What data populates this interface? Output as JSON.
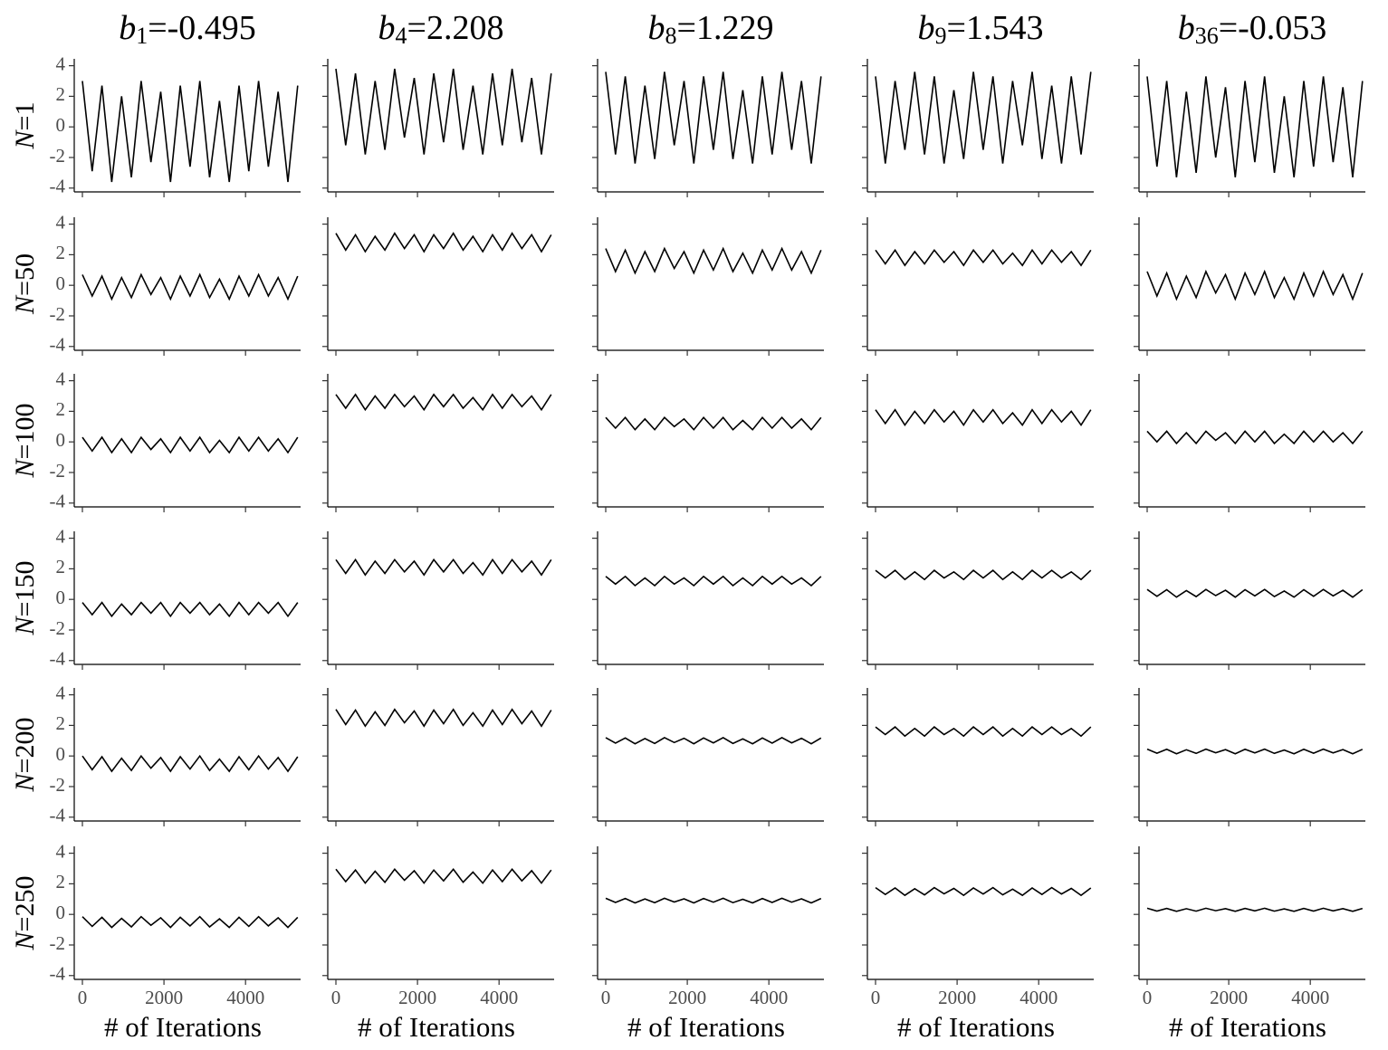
{
  "chart_data": {
    "type": "line",
    "columns": [
      {
        "var": "b",
        "sub": "1",
        "rest": "=-0.495"
      },
      {
        "var": "b",
        "sub": "4",
        "rest": "=2.208"
      },
      {
        "var": "b",
        "sub": "8",
        "rest": "=1.229"
      },
      {
        "var": "b",
        "sub": "9",
        "rest": "=1.543"
      },
      {
        "var": "b",
        "sub": "36",
        "rest": "=-0.053"
      }
    ],
    "x": [
      0,
      240,
      480,
      720,
      960,
      1200,
      1440,
      1680,
      1920,
      2160,
      2400,
      2640,
      2880,
      3120,
      3360,
      3600,
      3840,
      4080,
      4320,
      4560,
      4800,
      5040,
      5280
    ],
    "rows": [
      {
        "var": "N",
        "rest": "=1",
        "panels": [
          [
            3.0,
            -2.9,
            2.7,
            -3.6,
            2.0,
            -3.3,
            3.0,
            -2.3,
            2.3,
            -3.6,
            2.7,
            -2.6,
            3.0,
            -3.3,
            1.7,
            -3.6,
            2.7,
            -2.9,
            3.0,
            -2.6,
            2.3,
            -3.6,
            2.7
          ],
          [
            3.8,
            -1.2,
            3.5,
            -1.8,
            3.0,
            -1.5,
            3.8,
            -0.7,
            3.2,
            -1.8,
            3.5,
            -1.0,
            3.8,
            -1.5,
            2.7,
            -1.8,
            3.5,
            -1.2,
            3.8,
            -1.0,
            3.2,
            -1.8,
            3.5
          ],
          [
            3.6,
            -1.8,
            3.3,
            -2.4,
            2.7,
            -2.1,
            3.6,
            -1.2,
            3.0,
            -2.4,
            3.3,
            -1.5,
            3.6,
            -2.1,
            2.4,
            -2.4,
            3.3,
            -1.8,
            3.6,
            -1.5,
            3.0,
            -2.4,
            3.3
          ],
          [
            3.3,
            -2.4,
            3.0,
            -1.5,
            3.6,
            -1.8,
            3.3,
            -2.4,
            2.4,
            -2.1,
            3.6,
            -1.5,
            3.3,
            -2.4,
            3.0,
            -1.2,
            3.6,
            -2.1,
            2.7,
            -2.4,
            3.3,
            -1.8,
            3.6
          ],
          [
            3.3,
            -2.6,
            3.0,
            -3.3,
            2.3,
            -3.0,
            3.3,
            -2.0,
            2.6,
            -3.3,
            3.0,
            -2.3,
            3.3,
            -3.0,
            2.0,
            -3.3,
            3.0,
            -2.6,
            3.3,
            -2.3,
            2.6,
            -3.3,
            3.0
          ]
        ]
      },
      {
        "var": "N",
        "rest": "=50",
        "panels": [
          [
            0.7,
            -0.7,
            0.6,
            -0.9,
            0.5,
            -0.8,
            0.7,
            -0.6,
            0.5,
            -0.9,
            0.6,
            -0.7,
            0.7,
            -0.8,
            0.4,
            -0.9,
            0.6,
            -0.7,
            0.7,
            -0.7,
            0.5,
            -0.9,
            0.6
          ],
          [
            3.4,
            2.3,
            3.3,
            2.2,
            3.2,
            2.3,
            3.4,
            2.4,
            3.3,
            2.2,
            3.3,
            2.4,
            3.4,
            2.3,
            3.2,
            2.2,
            3.3,
            2.3,
            3.4,
            2.4,
            3.3,
            2.2,
            3.3
          ],
          [
            2.4,
            0.9,
            2.3,
            0.8,
            2.2,
            0.9,
            2.4,
            1.1,
            2.2,
            0.8,
            2.3,
            1.0,
            2.4,
            0.9,
            2.1,
            0.8,
            2.3,
            1.0,
            2.4,
            1.0,
            2.2,
            0.8,
            2.3
          ],
          [
            2.3,
            1.4,
            2.3,
            1.3,
            2.2,
            1.4,
            2.3,
            1.5,
            2.2,
            1.3,
            2.3,
            1.5,
            2.3,
            1.4,
            2.1,
            1.3,
            2.3,
            1.4,
            2.3,
            1.5,
            2.2,
            1.3,
            2.3
          ],
          [
            0.9,
            -0.7,
            0.8,
            -0.9,
            0.6,
            -0.8,
            0.9,
            -0.5,
            0.7,
            -0.9,
            0.8,
            -0.6,
            0.9,
            -0.8,
            0.5,
            -0.9,
            0.8,
            -0.7,
            0.9,
            -0.6,
            0.7,
            -0.9,
            0.8
          ]
        ]
      },
      {
        "var": "N",
        "rest": "=100",
        "panels": [
          [
            0.3,
            -0.6,
            0.3,
            -0.7,
            0.2,
            -0.7,
            0.3,
            -0.5,
            0.2,
            -0.7,
            0.3,
            -0.6,
            0.3,
            -0.7,
            0.1,
            -0.7,
            0.3,
            -0.6,
            0.3,
            -0.6,
            0.2,
            -0.7,
            0.3
          ],
          [
            3.1,
            2.2,
            3.1,
            2.1,
            3.0,
            2.2,
            3.1,
            2.3,
            3.0,
            2.1,
            3.1,
            2.3,
            3.1,
            2.2,
            2.9,
            2.1,
            3.1,
            2.2,
            3.1,
            2.3,
            3.0,
            2.1,
            3.1
          ],
          [
            1.6,
            0.9,
            1.6,
            0.8,
            1.5,
            0.8,
            1.6,
            1.0,
            1.5,
            0.8,
            1.6,
            0.9,
            1.6,
            0.8,
            1.4,
            0.8,
            1.6,
            0.9,
            1.6,
            0.9,
            1.5,
            0.8,
            1.6
          ],
          [
            2.1,
            1.2,
            2.1,
            1.1,
            2.0,
            1.2,
            2.1,
            1.3,
            2.0,
            1.1,
            2.1,
            1.3,
            2.1,
            1.2,
            1.9,
            1.1,
            2.1,
            1.2,
            2.1,
            1.3,
            2.0,
            1.1,
            2.1
          ],
          [
            0.7,
            0.0,
            0.7,
            -0.1,
            0.6,
            -0.1,
            0.7,
            0.1,
            0.6,
            -0.1,
            0.7,
            0.0,
            0.7,
            -0.1,
            0.5,
            -0.1,
            0.7,
            0.0,
            0.7,
            0.0,
            0.6,
            -0.1,
            0.7
          ]
        ]
      },
      {
        "var": "N",
        "rest": "=150",
        "panels": [
          [
            -0.2,
            -1.0,
            -0.2,
            -1.1,
            -0.3,
            -1.0,
            -0.2,
            -0.9,
            -0.2,
            -1.1,
            -0.2,
            -0.9,
            -0.2,
            -1.0,
            -0.3,
            -1.1,
            -0.2,
            -1.0,
            -0.2,
            -0.9,
            -0.2,
            -1.1,
            -0.2
          ],
          [
            2.6,
            1.7,
            2.6,
            1.6,
            2.5,
            1.7,
            2.6,
            1.8,
            2.5,
            1.6,
            2.6,
            1.8,
            2.6,
            1.7,
            2.4,
            1.6,
            2.6,
            1.7,
            2.6,
            1.8,
            2.5,
            1.6,
            2.6
          ],
          [
            1.5,
            1.0,
            1.5,
            0.9,
            1.4,
            0.9,
            1.5,
            1.0,
            1.4,
            0.9,
            1.5,
            1.0,
            1.5,
            0.9,
            1.4,
            0.9,
            1.5,
            1.0,
            1.5,
            1.0,
            1.4,
            0.9,
            1.5
          ],
          [
            1.9,
            1.4,
            1.9,
            1.3,
            1.8,
            1.3,
            1.9,
            1.4,
            1.8,
            1.3,
            1.9,
            1.4,
            1.9,
            1.3,
            1.8,
            1.3,
            1.9,
            1.4,
            1.9,
            1.4,
            1.8,
            1.3,
            1.9
          ],
          [
            0.65,
            0.2,
            0.63,
            0.15,
            0.58,
            0.18,
            0.65,
            0.25,
            0.6,
            0.15,
            0.63,
            0.23,
            0.65,
            0.18,
            0.55,
            0.15,
            0.63,
            0.2,
            0.65,
            0.23,
            0.6,
            0.15,
            0.63
          ]
        ]
      },
      {
        "var": "N",
        "rest": "=200",
        "panels": [
          [
            0.0,
            -0.9,
            -0.05,
            -1.0,
            -0.15,
            -0.95,
            0.0,
            -0.8,
            -0.1,
            -1.0,
            -0.05,
            -0.85,
            0.0,
            -0.95,
            -0.2,
            -1.0,
            -0.05,
            -0.9,
            0.0,
            -0.85,
            -0.1,
            -1.0,
            -0.05
          ],
          [
            3.05,
            2.06,
            3.0,
            1.95,
            2.89,
            2.0,
            3.05,
            2.17,
            2.94,
            1.95,
            3.0,
            2.11,
            3.05,
            2.0,
            2.83,
            1.95,
            3.0,
            2.06,
            3.05,
            2.11,
            2.94,
            1.95,
            3.0
          ],
          [
            1.2,
            0.84,
            1.18,
            0.8,
            1.14,
            0.82,
            1.2,
            0.88,
            1.16,
            0.8,
            1.18,
            0.86,
            1.2,
            0.82,
            1.12,
            0.8,
            1.18,
            0.84,
            1.2,
            0.86,
            1.16,
            0.8,
            1.18
          ],
          [
            1.9,
            1.4,
            1.9,
            1.3,
            1.8,
            1.3,
            1.9,
            1.4,
            1.8,
            1.3,
            1.9,
            1.4,
            1.9,
            1.3,
            1.8,
            1.3,
            1.9,
            1.4,
            1.9,
            1.4,
            1.8,
            1.3,
            1.9
          ],
          [
            0.45,
            0.18,
            0.44,
            0.15,
            0.41,
            0.17,
            0.45,
            0.21,
            0.42,
            0.15,
            0.44,
            0.2,
            0.45,
            0.17,
            0.39,
            0.15,
            0.44,
            0.18,
            0.45,
            0.2,
            0.42,
            0.15,
            0.44
          ]
        ]
      },
      {
        "var": "N",
        "rest": "=250",
        "panels": [
          [
            -0.15,
            -0.78,
            -0.19,
            -0.85,
            -0.26,
            -0.82,
            -0.15,
            -0.71,
            -0.22,
            -0.85,
            -0.19,
            -0.75,
            -0.15,
            -0.82,
            -0.29,
            -0.85,
            -0.19,
            -0.78,
            -0.15,
            -0.75,
            -0.22,
            -0.85,
            -0.19
          ],
          [
            2.95,
            2.14,
            2.9,
            2.05,
            2.82,
            2.1,
            2.95,
            2.23,
            2.86,
            2.05,
            2.9,
            2.19,
            2.95,
            2.1,
            2.77,
            2.05,
            2.9,
            2.14,
            2.95,
            2.19,
            2.86,
            2.05,
            2.9
          ],
          [
            1.05,
            0.78,
            1.04,
            0.75,
            1.01,
            0.77,
            1.05,
            0.81,
            1.02,
            0.75,
            1.04,
            0.8,
            1.05,
            0.77,
            0.99,
            0.75,
            1.04,
            0.78,
            1.05,
            0.8,
            1.02,
            0.75,
            1.04
          ],
          [
            1.75,
            1.3,
            1.73,
            1.25,
            1.68,
            1.28,
            1.75,
            1.35,
            1.7,
            1.25,
            1.73,
            1.33,
            1.75,
            1.28,
            1.65,
            1.25,
            1.73,
            1.3,
            1.75,
            1.33,
            1.7,
            1.25,
            1.73
          ],
          [
            0.4,
            0.22,
            0.39,
            0.2,
            0.37,
            0.21,
            0.4,
            0.24,
            0.38,
            0.2,
            0.39,
            0.23,
            0.4,
            0.21,
            0.36,
            0.2,
            0.39,
            0.22,
            0.4,
            0.23,
            0.38,
            0.2,
            0.39
          ]
        ]
      }
    ],
    "xlim": [
      -200,
      5350
    ],
    "ylim": [
      -4.25,
      4.45
    ],
    "xticks": [
      0,
      2000,
      4000
    ],
    "yticks": [
      -4,
      -2,
      0,
      2,
      4
    ],
    "xlabel": "# of Iterations",
    "color": "#000000"
  }
}
